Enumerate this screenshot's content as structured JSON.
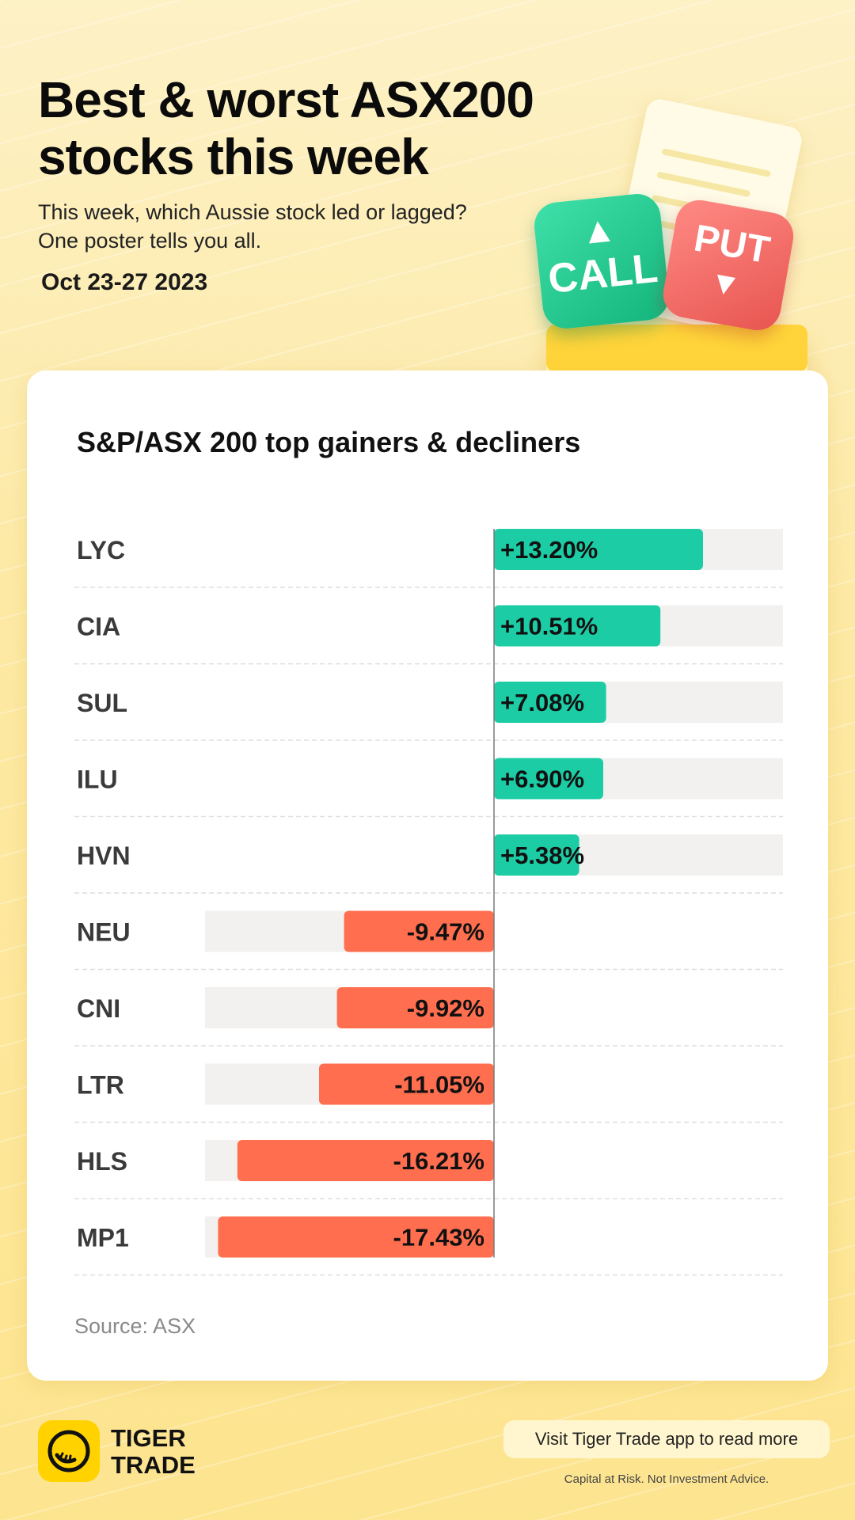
{
  "header": {
    "title_line1": "Best & worst ASX200",
    "title_line2": "stocks this week",
    "subtitle_line1": "This week, which Aussie stock led or lagged?",
    "subtitle_line2": "One poster tells you all.",
    "date": "Oct 23-27 2023"
  },
  "hero": {
    "call_label": "CALL",
    "put_label": "PUT"
  },
  "colors": {
    "gain": "#1ccca5",
    "loss": "#ff6f4f",
    "track": "#f2f1ef",
    "ink": "#3a3a3a"
  },
  "chart_data": {
    "type": "bar",
    "orientation": "horizontal-diverging",
    "title": "S&P/ASX 200 top gainers & decliners",
    "unit": "%",
    "xlim": [
      -20,
      15
    ],
    "categories": [
      "LYC",
      "CIA",
      "SUL",
      "ILU",
      "HVN",
      "NEU",
      "CNI",
      "LTR",
      "HLS",
      "MP1"
    ],
    "values": [
      13.2,
      10.51,
      7.08,
      6.9,
      5.38,
      -9.47,
      -9.92,
      -11.05,
      -16.21,
      -17.43
    ],
    "labels": [
      "+13.20%",
      "+10.51%",
      "+7.08%",
      "+6.90%",
      "+5.38%",
      "-9.47%",
      "-9.92%",
      "-11.05%",
      "-16.21%",
      "-17.43%"
    ],
    "source": "Source: ASX"
  },
  "footer": {
    "brand_line1": "TIGER",
    "brand_line2": "TRADE",
    "cta": "Visit Tiger Trade app to read more",
    "disclaimer": "Capital at Risk. Not Investment Advice."
  }
}
